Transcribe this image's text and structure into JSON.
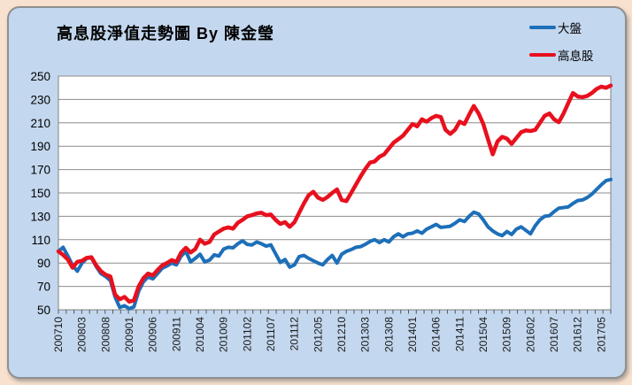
{
  "chart_data": {
    "type": "line",
    "title": "高息股淨值走勢圖 By 陳金瑩",
    "ylim": [
      50,
      250
    ],
    "ytick_step": 20,
    "y_tick_labels": [
      50,
      70,
      90,
      110,
      130,
      150,
      170,
      190,
      210,
      230,
      250
    ],
    "x_tick_labels": [
      "200710",
      "200803",
      "200808",
      "200901",
      "200906",
      "200911",
      "201004",
      "201009",
      "201102",
      "201107",
      "201112",
      "201205",
      "201210",
      "201303",
      "201308",
      "201401",
      "201406",
      "201411",
      "201504",
      "201509",
      "201602",
      "201607",
      "201612",
      "201705"
    ],
    "x_label_month_interval": 5,
    "x_range_months": [
      "200710",
      "201707"
    ],
    "x_minor_tick_intervals": 71,
    "grid": "horizontal",
    "legend_position": "top-right",
    "plot_background": "#ffffff",
    "grid_color": "#8c8c8c",
    "series": [
      {
        "id": "market-index",
        "name": "大盤",
        "color": "#1d6fb8",
        "line_width": 4,
        "values": [
          100,
          103.5,
          96,
          88,
          83,
          90,
          94,
          94.5,
          87,
          81,
          78.5,
          75,
          61,
          52,
          53.5,
          51,
          52.5,
          66,
          74,
          78,
          76.5,
          81,
          85.5,
          87.5,
          90,
          88.5,
          96,
          100,
          91,
          94,
          97.5,
          91,
          92.5,
          97,
          96,
          102,
          103.5,
          103,
          106.5,
          109,
          106,
          105.5,
          108,
          106.5,
          104.5,
          105.5,
          98,
          90.5,
          93,
          86.5,
          88.5,
          95.5,
          96.5,
          94,
          92,
          90,
          88.5,
          93,
          96.5,
          90,
          97.5,
          100,
          101.5,
          103.5,
          104,
          106,
          108.5,
          110,
          107.5,
          110,
          108,
          112.5,
          115,
          112.5,
          115,
          115.5,
          117.5,
          115.5,
          119,
          121,
          123,
          120.5,
          121,
          121.5,
          124,
          127,
          125.5,
          130,
          133.5,
          132,
          127,
          121,
          117.5,
          115,
          113.5,
          117,
          114.5,
          119,
          121,
          118,
          115,
          122,
          127,
          130,
          130.5,
          134,
          137,
          137.5,
          138,
          141,
          143.5,
          144,
          146,
          149,
          153,
          157,
          160.5,
          161.5
        ]
      },
      {
        "id": "high-dividend",
        "name": "高息股",
        "color": "#e8101e",
        "line_width": 4.5,
        "values": [
          100,
          97,
          93,
          86,
          91,
          92,
          94.5,
          95,
          88,
          83,
          80,
          78.5,
          63,
          59,
          61,
          57,
          58,
          70,
          77,
          81,
          79.5,
          84,
          88,
          90,
          92.5,
          91,
          99,
          103,
          99,
          102,
          110,
          106.5,
          108,
          114.5,
          117,
          119.5,
          120.5,
          119.5,
          124.5,
          127,
          130,
          131,
          132.5,
          133,
          131,
          131.5,
          127,
          123.5,
          125,
          121,
          125,
          133,
          141,
          148,
          151,
          146,
          144,
          146.5,
          150,
          153,
          144,
          143,
          150,
          157,
          164,
          170.5,
          176,
          177,
          181,
          183,
          188,
          193,
          196,
          199,
          204,
          209,
          207,
          213,
          211,
          214,
          216,
          215,
          204,
          200.5,
          204,
          211,
          209,
          217,
          224.5,
          218,
          209,
          196,
          183,
          194,
          198,
          196.5,
          192,
          197,
          202,
          203.5,
          203,
          204,
          210,
          216,
          218,
          213,
          210.5,
          218,
          227,
          235.5,
          232.5,
          232,
          233,
          235.5,
          239,
          241,
          240,
          242
        ]
      }
    ]
  }
}
